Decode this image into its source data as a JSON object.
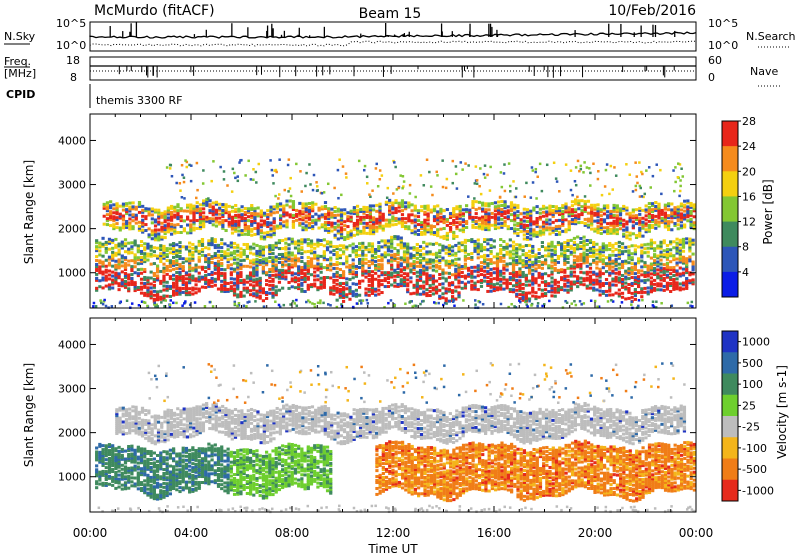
{
  "header": {
    "station": "McMurdo (fitACF)",
    "beam": "Beam 15",
    "date": "10/Feb/2016"
  },
  "top_panels": {
    "nsky_label": "N.Sky",
    "nsky_ticks": [
      "10^5",
      "10^0"
    ],
    "nsearch_label": "N.Search",
    "nsearch_ticks": [
      "10^5",
      "10^0"
    ],
    "freq_label_1": "Freq.",
    "freq_label_2": "[MHz]",
    "freq_ticks": [
      "18",
      "8"
    ],
    "nave_label": "Nave",
    "nave_ticks": [
      "60",
      "0"
    ],
    "cpid_label": "CPID",
    "cpid_value": "themis 3300 RF"
  },
  "chart_data": [
    {
      "type": "heatmap",
      "title": "",
      "xlabel": "",
      "ylabel": "Slant Range [km]",
      "xlim_hours": [
        0,
        24
      ],
      "ylim": [
        200,
        4600
      ],
      "yticks": [
        1000,
        2000,
        3000,
        4000
      ],
      "colorbar": {
        "label": "Power [dB]",
        "ticks": [
          "4",
          "8",
          "12",
          "16",
          "20",
          "24",
          "28"
        ],
        "colors": [
          "#0b1de6",
          "#2d56b8",
          "#3f8a5e",
          "#83c733",
          "#f4d010",
          "#f58b1c",
          "#e8261a"
        ]
      },
      "bands": [
        {
          "name": "upper",
          "x_range": [
            0.5,
            23.9
          ],
          "range_km": [
            1950,
            2600
          ],
          "power_db": "16-28"
        },
        {
          "name": "lower",
          "x_range": [
            0.2,
            23.9
          ],
          "range_km": [
            550,
            1750
          ],
          "power_db": "8-28"
        }
      ]
    },
    {
      "type": "heatmap",
      "title": "",
      "xlabel": "Time UT",
      "ylabel": "Slant Range [km]",
      "xlim_hours": [
        0,
        24
      ],
      "ylim": [
        200,
        4600
      ],
      "yticks": [
        1000,
        2000,
        3000,
        4000
      ],
      "xticks": [
        "00:00",
        "04:00",
        "08:00",
        "12:00",
        "16:00",
        "20:00",
        "00:00"
      ],
      "colorbar": {
        "label": "Velocity [m s-1]",
        "ticks": [
          "1000",
          "500",
          "100",
          "25",
          "-25",
          "-100",
          "-500",
          "-1000"
        ],
        "colors": [
          "#1f33c4",
          "#2e6aa8",
          "#3f8a5e",
          "#6ecf2e",
          "#bdbdbd",
          "#f4b51a",
          "#f07d17",
          "#e62a1c"
        ]
      },
      "bands": [
        {
          "name": "ground-scatter",
          "x_range": [
            1.0,
            23.5
          ],
          "range_km": [
            1950,
            2600
          ],
          "velocity_class": "-25..25"
        },
        {
          "name": "positive",
          "x_range": [
            0.2,
            9.5
          ],
          "range_km": [
            700,
            1700
          ],
          "velocity_class": "100..500"
        },
        {
          "name": "negative",
          "x_range": [
            11.3,
            23.9
          ],
          "range_km": [
            650,
            1750
          ],
          "velocity_class": "-500..-100"
        }
      ]
    }
  ]
}
